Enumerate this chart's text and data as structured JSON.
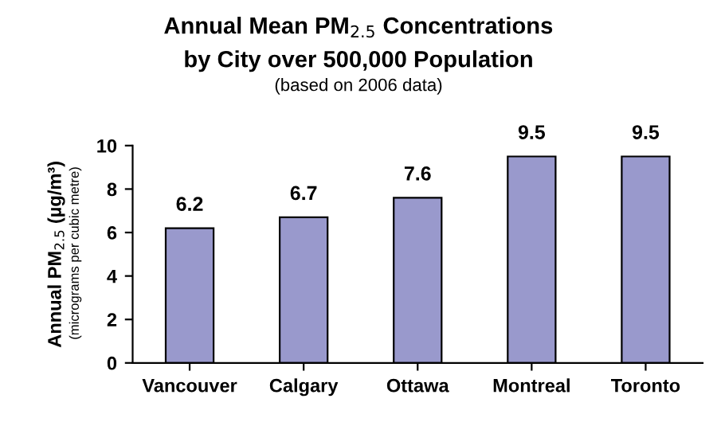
{
  "chart_data": {
    "type": "bar",
    "title": "Annual Mean PM$_{2.5}$ Concentrations\nby City over 500,000 Population",
    "subtitle": "(based on 2006 data)",
    "ylabel": "Annual PM$_{2.5}$ (µg/m³)",
    "annotations": [
      "(micrograms per cubic metre)"
    ],
    "categories": [
      "Vancouver",
      "Calgary",
      "Ottawa",
      "Montreal",
      "Toronto"
    ],
    "values": [
      6.2,
      6.7,
      7.6,
      9.5,
      9.5
    ],
    "color": "#9999cc",
    "ylim": [
      0,
      10
    ],
    "yticks": [
      0,
      2,
      4,
      6,
      8,
      10
    ],
    "grid": false,
    "data_labels": true
  }
}
